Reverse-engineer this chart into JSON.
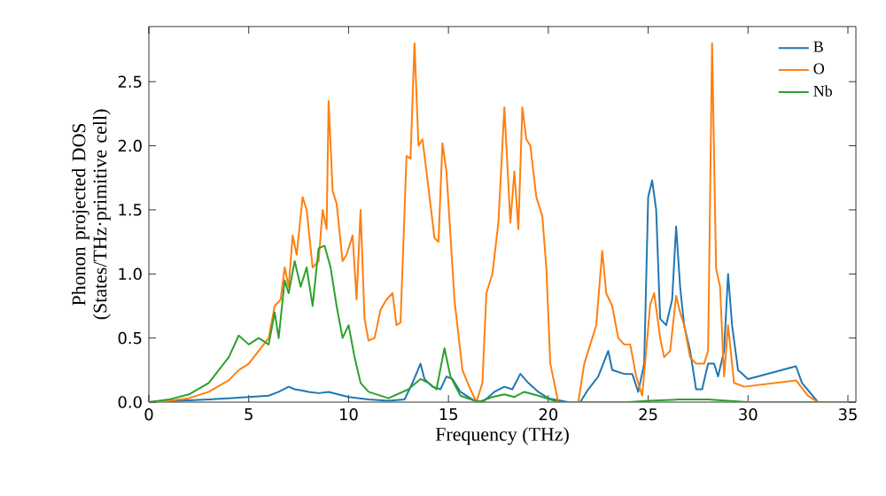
{
  "chart_data": {
    "type": "line",
    "xlabel": "Frequency (THz)",
    "ylabel": "Phonon projected DOS (States/THz·primitive cell)",
    "xlim": [
      0,
      35.4
    ],
    "ylim": [
      0,
      2.93
    ],
    "xticks": [
      0,
      5,
      10,
      15,
      20,
      25,
      30,
      35
    ],
    "yticks": [
      {
        "value": 0,
        "label": "0.0"
      },
      {
        "value": 0.5,
        "label": "0.5"
      },
      {
        "value": 1,
        "label": "1.0"
      },
      {
        "value": 1.5,
        "label": "1.5"
      },
      {
        "value": 2,
        "label": "2.0"
      },
      {
        "value": 2.5,
        "label": "2.5"
      }
    ],
    "legend": "top right",
    "grid": false,
    "marker": "none",
    "line_style": "solid",
    "series": [
      {
        "name": "B",
        "color": "#1f77b4",
        "x": [
          0,
          3,
          5,
          6,
          6.5,
          7,
          7.3,
          7.7,
          8,
          8.5,
          9,
          10,
          11,
          12,
          12.8,
          13.2,
          13.6,
          13.8,
          14.2,
          14.6,
          14.9,
          15.2,
          15.6,
          16.2,
          16.7,
          17.3,
          17.8,
          18.2,
          18.6,
          19,
          19.5,
          20,
          21,
          21.6,
          22,
          22.5,
          23,
          23.2,
          23.8,
          24.2,
          24.5,
          24.8,
          25.0,
          25.2,
          25.4,
          25.6,
          25.9,
          26.2,
          26.4,
          26.6,
          26.8,
          27.1,
          27.4,
          27.7,
          28.0,
          28.3,
          28.5,
          28.8,
          29.0,
          29.2,
          29.5,
          30,
          32.4,
          32.7,
          33.5,
          35
        ],
        "values": [
          0,
          0.02,
          0.04,
          0.05,
          0.08,
          0.12,
          0.1,
          0.09,
          0.08,
          0.07,
          0.08,
          0.04,
          0.02,
          0.01,
          0.02,
          0.15,
          0.3,
          0.18,
          0.12,
          0.1,
          0.2,
          0.18,
          0.08,
          0.02,
          0,
          0.08,
          0.12,
          0.1,
          0.22,
          0.15,
          0.08,
          0.03,
          0,
          0,
          0.1,
          0.2,
          0.4,
          0.25,
          0.22,
          0.22,
          0.08,
          0.3,
          1.6,
          1.73,
          1.5,
          0.65,
          0.6,
          0.8,
          1.37,
          0.9,
          0.6,
          0.4,
          0.1,
          0.1,
          0.3,
          0.3,
          0.2,
          0.4,
          1.0,
          0.6,
          0.25,
          0.18,
          0.28,
          0.15,
          0,
          0
        ]
      },
      {
        "name": "O",
        "color": "#ff7f0e",
        "x": [
          0,
          1,
          2,
          3,
          4,
          4.5,
          5,
          5.5,
          6,
          6.3,
          6.6,
          6.8,
          7,
          7.2,
          7.4,
          7.7,
          7.9,
          8.2,
          8.5,
          8.7,
          8.9,
          9.0,
          9.2,
          9.4,
          9.7,
          9.9,
          10.2,
          10.4,
          10.6,
          10.8,
          11.0,
          11.3,
          11.6,
          11.9,
          12.2,
          12.4,
          12.6,
          12.9,
          13.1,
          13.3,
          13.5,
          13.7,
          13.9,
          14.3,
          14.5,
          14.7,
          14.9,
          15.3,
          15.7,
          16.1,
          16.4,
          16.7,
          16.9,
          17.2,
          17.5,
          17.8,
          18.1,
          18.3,
          18.5,
          18.7,
          18.9,
          19.1,
          19.4,
          19.7,
          19.9,
          20.1,
          20.5,
          21.5,
          21.8,
          22.4,
          22.7,
          22.9,
          23.2,
          23.5,
          23.8,
          24.1,
          24.4,
          24.7,
          24.9,
          25.1,
          25.3,
          25.6,
          25.8,
          26.1,
          26.4,
          26.6,
          26.8,
          27.1,
          27.4,
          27.8,
          28.0,
          28.2,
          28.4,
          28.6,
          28.8,
          29.0,
          29.3,
          29.8,
          32.4,
          33.0,
          33.5
        ],
        "values": [
          0,
          0.01,
          0.03,
          0.08,
          0.17,
          0.25,
          0.3,
          0.4,
          0.5,
          0.75,
          0.8,
          1.05,
          0.9,
          1.3,
          1.15,
          1.6,
          1.5,
          1.05,
          1.1,
          1.5,
          1.35,
          2.35,
          1.65,
          1.55,
          1.1,
          1.15,
          1.3,
          0.8,
          1.5,
          0.65,
          0.48,
          0.5,
          0.72,
          0.8,
          0.85,
          0.6,
          0.62,
          1.92,
          1.9,
          2.8,
          2.0,
          2.05,
          1.8,
          1.28,
          1.25,
          2.02,
          1.8,
          0.8,
          0.25,
          0.1,
          0,
          0.15,
          0.85,
          1.0,
          1.4,
          2.3,
          1.4,
          1.8,
          1.35,
          2.3,
          2.05,
          2.0,
          1.6,
          1.45,
          1.05,
          0.3,
          0,
          0,
          0.3,
          0.6,
          1.18,
          0.85,
          0.75,
          0.5,
          0.45,
          0.45,
          0.2,
          0.05,
          0.4,
          0.76,
          0.85,
          0.5,
          0.35,
          0.4,
          0.83,
          0.7,
          0.6,
          0.35,
          0.3,
          0.3,
          0.4,
          2.8,
          1.04,
          0.9,
          0.2,
          0.6,
          0.15,
          0.12,
          0.17,
          0.05,
          0
        ]
      },
      {
        "name": "Nb",
        "color": "#2ca02c",
        "x": [
          0,
          1,
          2,
          3,
          4,
          4.5,
          5,
          5.5,
          6,
          6.3,
          6.5,
          6.8,
          7,
          7.3,
          7.6,
          7.9,
          8.2,
          8.5,
          8.8,
          9.1,
          9.4,
          9.7,
          10.0,
          10.3,
          10.6,
          11,
          12,
          13,
          13.6,
          14,
          14.4,
          14.8,
          15.1,
          15.6,
          16.5,
          17.2,
          17.8,
          18.3,
          18.8,
          19.5,
          20.5,
          24,
          25,
          26.5,
          28,
          30,
          35
        ],
        "values": [
          0,
          0.02,
          0.06,
          0.15,
          0.35,
          0.52,
          0.45,
          0.5,
          0.45,
          0.7,
          0.5,
          0.95,
          0.85,
          1.1,
          0.9,
          1.05,
          0.75,
          1.2,
          1.22,
          1.05,
          0.75,
          0.5,
          0.6,
          0.35,
          0.15,
          0.08,
          0.03,
          0.1,
          0.18,
          0.15,
          0.1,
          0.42,
          0.2,
          0.05,
          0,
          0.04,
          0.06,
          0.04,
          0.08,
          0.05,
          0,
          0,
          0.01,
          0.02,
          0.02,
          0,
          0
        ]
      }
    ]
  }
}
